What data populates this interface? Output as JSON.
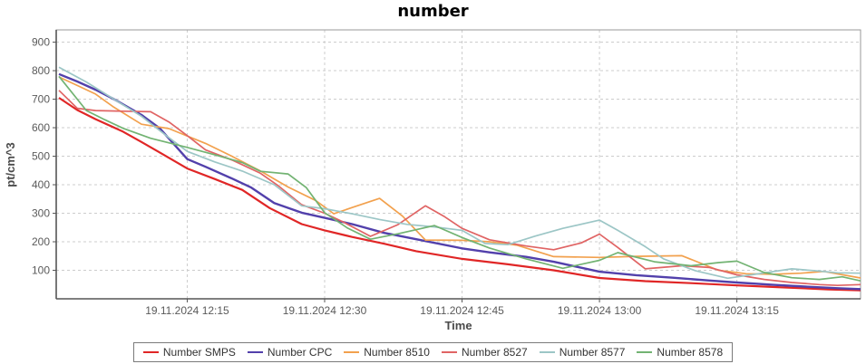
{
  "title": "number",
  "palette": {
    "background": "#ffffff",
    "grid": "#cccccc",
    "plot_border": "#9a9a9a",
    "axis_line": "#555555",
    "tick_label": "#5a5a5a",
    "axis_title": "#4a4a4a",
    "title_color": "#000000",
    "legend_border": "#7a7a7a",
    "legend_text": "#333333"
  },
  "chart_data": {
    "type": "line",
    "title": "number",
    "xlabel": "Time",
    "ylabel": "pt/cm^3",
    "grid": "dashed",
    "legend_position": "bottom",
    "x_unit": "minutes after 19.11.2024 12:00",
    "xlim": [
      0.7,
      88.5
    ],
    "ylim": [
      0,
      943
    ],
    "y_ticks": [
      100,
      200,
      300,
      400,
      500,
      600,
      700,
      800,
      900
    ],
    "x_ticks": [
      {
        "t": 15,
        "label": "19.11.2024 12:15"
      },
      {
        "t": 30,
        "label": "19.11.2024 12:30"
      },
      {
        "t": 45,
        "label": "19.11.2024 12:45"
      },
      {
        "t": 60,
        "label": "19.11.2024 13:00"
      },
      {
        "t": 75,
        "label": "19.11.2024 13:15"
      }
    ],
    "series": [
      {
        "name": "Number SMPS",
        "color": "#e02626",
        "width": 2.2,
        "points": [
          [
            1,
            705
          ],
          [
            3,
            662
          ],
          [
            5,
            630
          ],
          [
            8,
            586
          ],
          [
            10,
            550
          ],
          [
            12,
            513
          ],
          [
            15,
            457
          ],
          [
            18,
            420
          ],
          [
            21,
            382
          ],
          [
            24,
            318
          ],
          [
            27.5,
            262
          ],
          [
            30,
            240
          ],
          [
            33,
            217
          ],
          [
            36.5,
            193
          ],
          [
            40,
            167
          ],
          [
            45,
            140
          ],
          [
            50,
            121
          ],
          [
            55,
            100
          ],
          [
            60,
            73
          ],
          [
            65,
            62
          ],
          [
            70,
            55
          ],
          [
            75,
            47
          ],
          [
            80,
            40
          ],
          [
            85,
            33
          ],
          [
            88.5,
            30
          ]
        ]
      },
      {
        "name": "Number CPC",
        "color": "#5240ab",
        "width": 2.4,
        "points": [
          [
            1,
            788
          ],
          [
            3,
            762
          ],
          [
            5,
            733
          ],
          [
            7,
            700
          ],
          [
            10,
            645
          ],
          [
            12,
            598
          ],
          [
            15,
            490
          ],
          [
            17,
            463
          ],
          [
            20,
            420
          ],
          [
            22,
            390
          ],
          [
            24.5,
            336
          ],
          [
            27.5,
            302
          ],
          [
            30,
            284
          ],
          [
            33,
            262
          ],
          [
            36.5,
            231
          ],
          [
            40,
            209
          ],
          [
            45,
            177
          ],
          [
            48,
            163
          ],
          [
            52,
            147
          ],
          [
            55,
            130
          ],
          [
            60,
            95
          ],
          [
            64,
            83
          ],
          [
            68,
            74
          ],
          [
            72,
            64
          ],
          [
            75,
            57
          ],
          [
            79,
            49
          ],
          [
            83,
            42
          ],
          [
            86,
            37
          ],
          [
            88.5,
            34
          ]
        ]
      },
      {
        "name": "Number 8510",
        "color": "#f2a14e",
        "width": 1.7,
        "points": [
          [
            1,
            778
          ],
          [
            3,
            748
          ],
          [
            5,
            718
          ],
          [
            7,
            672
          ],
          [
            10,
            612
          ],
          [
            13,
            597
          ],
          [
            17,
            545
          ],
          [
            20,
            498
          ],
          [
            23,
            448
          ],
          [
            26,
            392
          ],
          [
            29,
            345
          ],
          [
            31,
            298
          ],
          [
            33,
            320
          ],
          [
            36,
            352
          ],
          [
            38.5,
            290
          ],
          [
            41,
            206
          ],
          [
            45,
            205
          ],
          [
            48,
            200
          ],
          [
            51,
            188
          ],
          [
            55,
            148
          ],
          [
            60,
            145
          ],
          [
            64,
            149
          ],
          [
            69,
            151
          ],
          [
            73,
            100
          ],
          [
            76,
            88
          ],
          [
            79,
            86
          ],
          [
            82,
            90
          ],
          [
            84.5,
            96
          ],
          [
            88.5,
            73
          ]
        ]
      },
      {
        "name": "Number 8527",
        "color": "#e06464",
        "width": 1.7,
        "points": [
          [
            1,
            731
          ],
          [
            3,
            668
          ],
          [
            5,
            660
          ],
          [
            8,
            658
          ],
          [
            11,
            656
          ],
          [
            13,
            620
          ],
          [
            15,
            572
          ],
          [
            17,
            522
          ],
          [
            20,
            485
          ],
          [
            23,
            440
          ],
          [
            25,
            395
          ],
          [
            27.5,
            330
          ],
          [
            30,
            300
          ],
          [
            32,
            270
          ],
          [
            35,
            219
          ],
          [
            38,
            260
          ],
          [
            41,
            326
          ],
          [
            43,
            290
          ],
          [
            45,
            247
          ],
          [
            48,
            207
          ],
          [
            52,
            185
          ],
          [
            55,
            172
          ],
          [
            58,
            196
          ],
          [
            60,
            227
          ],
          [
            62,
            180
          ],
          [
            65,
            105
          ],
          [
            69,
            116
          ],
          [
            72,
            110
          ],
          [
            75,
            84
          ],
          [
            78,
            68
          ],
          [
            81,
            57
          ],
          [
            84,
            50
          ],
          [
            86,
            47
          ],
          [
            88.5,
            50
          ]
        ]
      },
      {
        "name": "Number 8577",
        "color": "#9cc6c6",
        "width": 1.7,
        "points": [
          [
            1,
            812
          ],
          [
            4,
            760
          ],
          [
            7,
            700
          ],
          [
            10,
            640
          ],
          [
            13,
            565
          ],
          [
            15,
            517
          ],
          [
            18,
            480
          ],
          [
            21,
            448
          ],
          [
            24.5,
            400
          ],
          [
            27.5,
            326
          ],
          [
            30,
            316
          ],
          [
            33,
            298
          ],
          [
            36,
            278
          ],
          [
            39,
            261
          ],
          [
            42,
            252
          ],
          [
            45,
            240
          ],
          [
            47.5,
            194
          ],
          [
            50,
            190
          ],
          [
            53,
            220
          ],
          [
            56,
            247
          ],
          [
            60,
            276
          ],
          [
            62,
            240
          ],
          [
            65,
            183
          ],
          [
            67,
            140
          ],
          [
            70.5,
            98
          ],
          [
            74,
            72
          ],
          [
            77,
            86
          ],
          [
            81,
            105
          ],
          [
            84,
            97
          ],
          [
            86,
            91
          ],
          [
            88.5,
            90
          ]
        ]
      },
      {
        "name": "Number 8578",
        "color": "#72b372",
        "width": 1.7,
        "points": [
          [
            1,
            780
          ],
          [
            4,
            660
          ],
          [
            6,
            628
          ],
          [
            8,
            598
          ],
          [
            11,
            563
          ],
          [
            15,
            531
          ],
          [
            18,
            505
          ],
          [
            21,
            478
          ],
          [
            23,
            447
          ],
          [
            26,
            438
          ],
          [
            28,
            390
          ],
          [
            30,
            302
          ],
          [
            32.5,
            248
          ],
          [
            35,
            209
          ],
          [
            38,
            228
          ],
          [
            42,
            257
          ],
          [
            45,
            215
          ],
          [
            48,
            178
          ],
          [
            52,
            140
          ],
          [
            56,
            107
          ],
          [
            60,
            135
          ],
          [
            62,
            162
          ],
          [
            66,
            130
          ],
          [
            70,
            116
          ],
          [
            73,
            127
          ],
          [
            75,
            132
          ],
          [
            78,
            92
          ],
          [
            81,
            74
          ],
          [
            84,
            68
          ],
          [
            86.5,
            77
          ],
          [
            88.5,
            63
          ]
        ]
      }
    ]
  }
}
